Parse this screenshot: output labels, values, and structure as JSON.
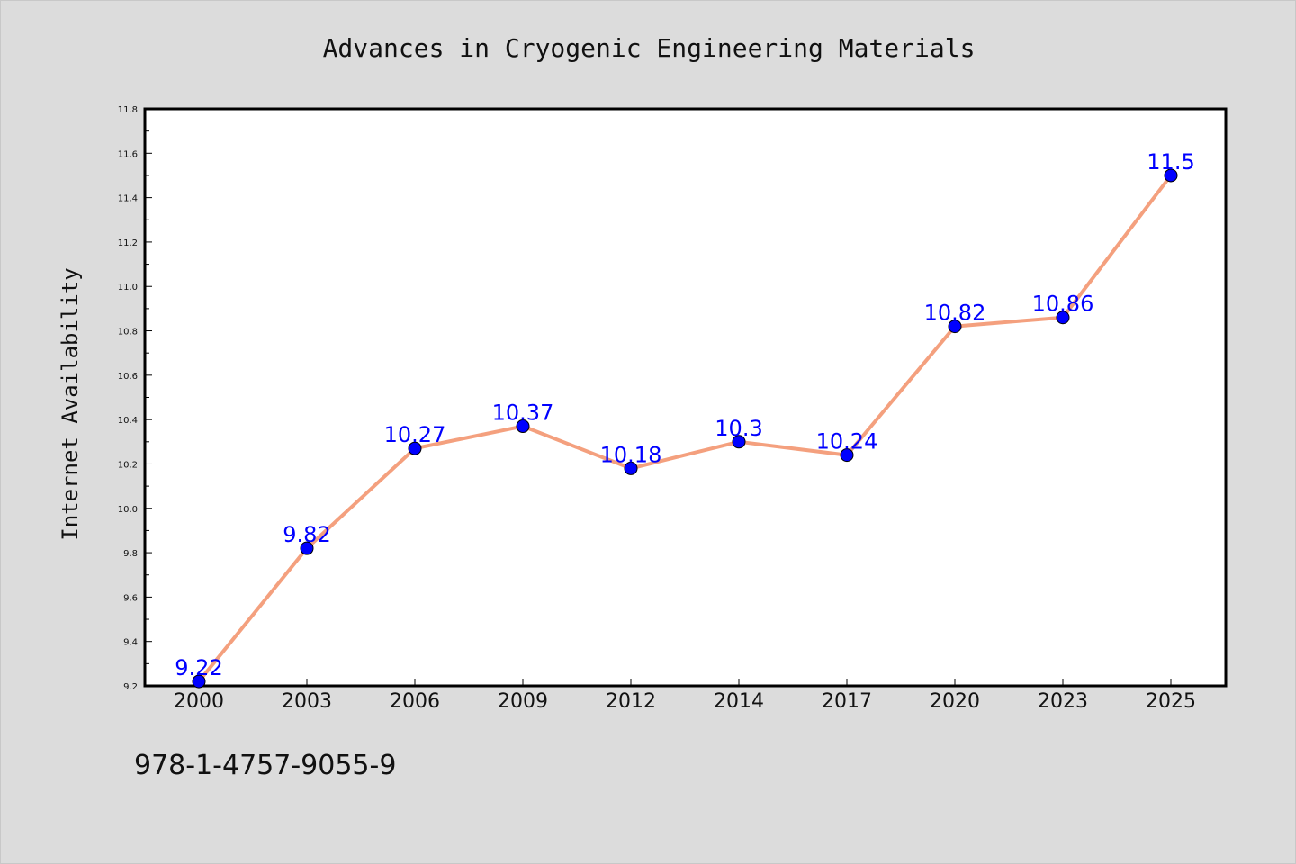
{
  "chart_data": {
    "type": "line",
    "title": "Advances in Cryogenic Engineering Materials",
    "xlabel": "",
    "ylabel": "Internet Availability",
    "categories": [
      "2000",
      "2003",
      "2006",
      "2009",
      "2012",
      "2014",
      "2017",
      "2020",
      "2023",
      "2025"
    ],
    "series": [
      {
        "values": [
          9.22,
          9.82,
          10.27,
          10.37,
          10.18,
          10.3,
          10.24,
          10.82,
          10.86,
          11.5
        ],
        "labels": [
          "9.22",
          "9.82",
          "10.27",
          "10.37",
          "10.18",
          "10.3",
          "10.24",
          "10.82",
          "10.86",
          "11.5"
        ],
        "line_color": "#f4a07e",
        "marker_color": "#0000ff"
      }
    ],
    "ylim": [
      9.2,
      11.8
    ],
    "yticks": [
      "9.2",
      "9.4",
      "9.6",
      "9.8",
      "10.0",
      "10.2",
      "10.4",
      "10.6",
      "10.8",
      "11.0",
      "11.2",
      "11.4",
      "11.6",
      "11.8"
    ],
    "grid": false,
    "legend": "none"
  },
  "footer": {
    "isbn": "978-1-4757-9055-9"
  }
}
